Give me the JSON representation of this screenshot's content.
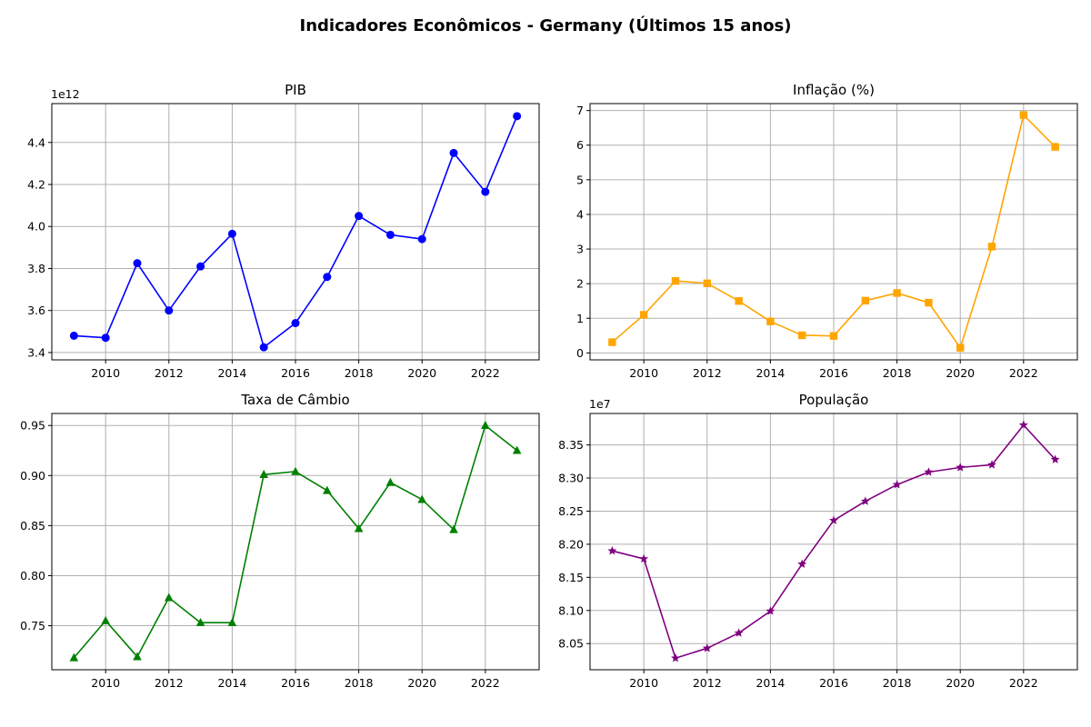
{
  "title": "Indicadores Econômicos - Germany (Últimos 15 anos)",
  "chart_data": [
    {
      "type": "line",
      "title": "PIB",
      "offset_label": "1e12",
      "color": "#0000ff",
      "marker": "circle",
      "x": [
        2009,
        2010,
        2011,
        2012,
        2013,
        2014,
        2015,
        2016,
        2017,
        2018,
        2019,
        2020,
        2021,
        2022,
        2023
      ],
      "values": [
        3.48,
        3.47,
        3.825,
        3.6,
        3.81,
        3.965,
        3.425,
        3.54,
        3.76,
        4.05,
        3.96,
        3.94,
        4.35,
        4.165,
        4.525
      ],
      "xlim": [
        2008.3,
        2023.7
      ],
      "ylim": [
        3.365,
        4.585
      ],
      "xticks": [
        2010,
        2012,
        2014,
        2016,
        2018,
        2020,
        2022
      ],
      "yticks": [
        3.4,
        3.6,
        3.8,
        4.0,
        4.2,
        4.4
      ],
      "ytick_decimals": 1,
      "grid": true
    },
    {
      "type": "line",
      "title": "Inflação (%)",
      "color": "#ffa500",
      "marker": "square",
      "x": [
        2009,
        2010,
        2011,
        2012,
        2013,
        2014,
        2015,
        2016,
        2017,
        2018,
        2019,
        2020,
        2021,
        2022,
        2023
      ],
      "values": [
        0.31,
        1.1,
        2.08,
        2.01,
        1.5,
        0.91,
        0.51,
        0.49,
        1.51,
        1.73,
        1.45,
        0.15,
        3.07,
        6.87,
        5.95
      ],
      "xlim": [
        2008.3,
        2023.7
      ],
      "ylim": [
        -0.2,
        7.2
      ],
      "xticks": [
        2010,
        2012,
        2014,
        2016,
        2018,
        2020,
        2022
      ],
      "yticks": [
        0,
        1,
        2,
        3,
        4,
        5,
        6,
        7
      ],
      "ytick_decimals": 0,
      "grid": true
    },
    {
      "type": "line",
      "title": "Taxa de Câmbio",
      "color": "#008000",
      "marker": "triangle",
      "x": [
        2009,
        2010,
        2011,
        2012,
        2013,
        2014,
        2015,
        2016,
        2017,
        2018,
        2019,
        2020,
        2021,
        2022,
        2023
      ],
      "values": [
        0.718,
        0.755,
        0.719,
        0.778,
        0.753,
        0.753,
        0.901,
        0.904,
        0.885,
        0.847,
        0.893,
        0.876,
        0.846,
        0.95,
        0.925
      ],
      "xlim": [
        2008.3,
        2023.7
      ],
      "ylim": [
        0.706,
        0.962
      ],
      "xticks": [
        2010,
        2012,
        2014,
        2016,
        2018,
        2020,
        2022
      ],
      "yticks": [
        0.75,
        0.8,
        0.85,
        0.9,
        0.95
      ],
      "ytick_decimals": 2,
      "grid": true
    },
    {
      "type": "line",
      "title": "População",
      "offset_label": "1e7",
      "color": "#800080",
      "marker": "star",
      "x": [
        2009,
        2010,
        2011,
        2012,
        2013,
        2014,
        2015,
        2016,
        2017,
        2018,
        2019,
        2020,
        2021,
        2022,
        2023
      ],
      "values": [
        8.19,
        8.178,
        8.028,
        8.043,
        8.066,
        8.099,
        8.17,
        8.236,
        8.265,
        8.29,
        8.309,
        8.316,
        8.32,
        8.38,
        8.328
      ],
      "xlim": [
        2008.3,
        2023.7
      ],
      "ylim": [
        8.0105,
        8.3975
      ],
      "xticks": [
        2010,
        2012,
        2014,
        2016,
        2018,
        2020,
        2022
      ],
      "yticks": [
        8.05,
        8.1,
        8.15,
        8.2,
        8.25,
        8.3,
        8.35
      ],
      "ytick_decimals": 2,
      "grid": true
    }
  ]
}
